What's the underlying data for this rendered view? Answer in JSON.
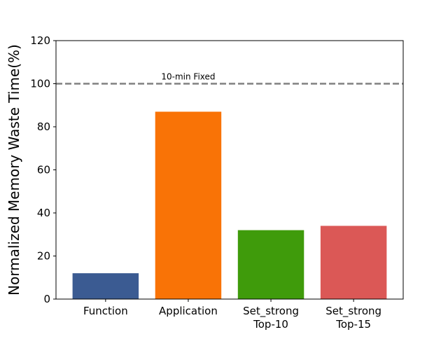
{
  "chart_data": {
    "type": "bar",
    "title": "",
    "xlabel": "",
    "ylabel": "Normalized Memory Waste Time(%)",
    "categories": [
      [
        "Function"
      ],
      [
        "Application"
      ],
      [
        "Set_strong",
        "Top-10"
      ],
      [
        "Set_strong",
        "Top-15"
      ]
    ],
    "values": [
      12,
      87,
      32,
      34
    ],
    "colors": [
      "#3b5b92",
      "#f97306",
      "#3f9b0b",
      "#db5856"
    ],
    "ylim": [
      0,
      120
    ],
    "yticks": [
      0,
      20,
      40,
      60,
      80,
      100,
      120
    ],
    "grid": false,
    "legend": "none",
    "reference_line": {
      "value": 100,
      "label": "10-min Fixed",
      "color": "#808080",
      "style": "dashed"
    }
  }
}
